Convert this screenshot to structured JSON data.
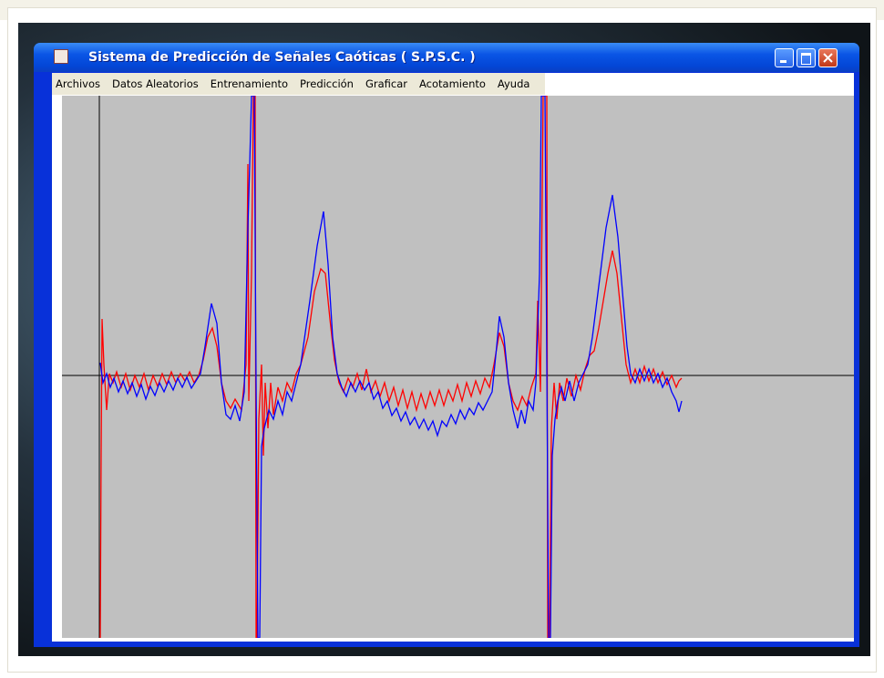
{
  "window": {
    "title": "Sistema de Predicción de Señales Caóticas ( S.P.S.C. )"
  },
  "menu": [
    "Archivos",
    "Datos Aleatorios",
    "Entrenamiento",
    "Predicción",
    "Graficar",
    "Acotamiento",
    "Ayuda"
  ],
  "chart_data": {
    "type": "line",
    "series": [
      {
        "color": "#0000ff",
        "x": [
          1,
          4,
          8,
          12,
          16,
          21,
          26,
          31,
          36,
          41,
          46,
          51,
          56,
          61,
          66,
          71,
          76,
          81,
          86,
          91,
          96,
          101,
          106,
          111,
          116,
          123,
          129,
          134,
          139,
          144,
          149,
          154,
          159,
          163,
          165,
          167,
          170,
          172,
          174,
          176,
          178,
          181,
          186,
          191,
          196,
          201,
          206,
          211,
          216,
          221,
          231,
          239,
          246,
          251,
          256,
          261,
          266,
          271,
          276,
          281,
          286,
          291,
          296,
          301,
          306,
          311,
          316,
          321,
          326,
          331,
          336,
          341,
          346,
          351,
          356,
          361,
          366,
          371,
          376,
          381,
          386,
          391,
          396,
          401,
          406,
          411,
          416,
          421,
          426,
          431,
          436,
          439,
          444,
          449,
          454,
          459,
          463,
          467,
          471,
          476,
          479,
          483,
          485,
          489,
          491,
          493,
          495,
          497,
          500,
          503,
          507,
          511,
          516,
          521,
          526,
          531,
          536,
          541,
          546,
          551,
          556,
          563,
          569,
          574,
          579,
          583,
          588,
          593,
          598,
          603,
          608,
          613,
          618,
          623,
          628,
          633,
          636,
          639
        ],
        "values": [
          14,
          -8,
          2,
          -13,
          -3,
          -18,
          -6,
          -20,
          -8,
          -23,
          -10,
          -26,
          -12,
          -22,
          -8,
          -18,
          -6,
          -16,
          -3,
          -13,
          -2,
          -14,
          -6,
          2,
          32,
          79,
          57,
          -8,
          -43,
          -48,
          -33,
          -50,
          -18,
          162,
          232,
          307,
          307,
          -8,
          -288,
          -288,
          -78,
          -58,
          -38,
          -48,
          -28,
          -43,
          -18,
          -28,
          -8,
          12,
          82,
          142,
          180,
          122,
          42,
          2,
          -13,
          -23,
          -8,
          -18,
          -6,
          -16,
          -8,
          -26,
          -18,
          -36,
          -28,
          -44,
          -36,
          -50,
          -40,
          -54,
          -46,
          -58,
          -48,
          -60,
          -50,
          -66,
          -50,
          -56,
          -43,
          -53,
          -38,
          -48,
          -36,
          -43,
          -30,
          -38,
          -28,
          -18,
          32,
          65,
          42,
          -8,
          -38,
          -58,
          -38,
          -53,
          -28,
          -38,
          -8,
          112,
          307,
          307,
          12,
          -288,
          -288,
          -88,
          -48,
          -28,
          -13,
          -28,
          -6,
          -28,
          -8,
          2,
          12,
          42,
          82,
          122,
          162,
          198,
          152,
          92,
          32,
          2,
          -8,
          7,
          -6,
          7,
          -8,
          2,
          -13,
          -3,
          -18,
          -28,
          -40,
          -28
        ]
      },
      {
        "color": "#ff0000",
        "x": [
          1,
          2,
          3,
          5,
          8,
          11,
          15,
          19,
          24,
          29,
          34,
          39,
          44,
          49,
          54,
          59,
          64,
          69,
          74,
          79,
          84,
          89,
          94,
          99,
          104,
          109,
          114,
          119,
          124,
          129,
          134,
          139,
          144,
          149,
          156,
          161,
          163,
          164,
          167,
          169,
          171,
          172,
          173,
          175,
          178,
          180,
          182,
          185,
          188,
          191,
          196,
          201,
          206,
          211,
          216,
          221,
          229,
          236,
          243,
          248,
          253,
          258,
          263,
          268,
          273,
          278,
          283,
          288,
          293,
          298,
          303,
          308,
          313,
          318,
          323,
          328,
          333,
          338,
          343,
          348,
          353,
          358,
          363,
          368,
          373,
          378,
          383,
          388,
          393,
          398,
          403,
          408,
          413,
          418,
          423,
          428,
          433,
          439,
          444,
          449,
          454,
          459,
          464,
          469,
          474,
          479,
          481,
          484,
          487,
          491,
          492,
          494,
          496,
          499,
          502,
          505,
          509,
          513,
          518,
          523,
          528,
          533,
          538,
          543,
          548,
          553,
          558,
          563,
          568,
          573,
          578,
          583,
          588,
          593,
          598,
          603,
          608,
          613,
          618,
          623,
          628,
          633,
          636,
          639
        ],
        "values": [
          -288,
          -88,
          62,
          12,
          -38,
          2,
          -8,
          4,
          -13,
          2,
          -16,
          0,
          -13,
          2,
          -16,
          0,
          -12,
          2,
          -10,
          4,
          -8,
          2,
          -6,
          4,
          -8,
          0,
          17,
          42,
          52,
          32,
          -8,
          -28,
          -36,
          -26,
          -38,
          12,
          232,
          -28,
          112,
          307,
          307,
          -288,
          -288,
          -48,
          12,
          -88,
          -8,
          -58,
          -8,
          -43,
          -13,
          -28,
          -8,
          -18,
          2,
          12,
          42,
          92,
          117,
          112,
          62,
          17,
          -8,
          -18,
          -3,
          -13,
          2,
          -16,
          7,
          -18,
          -6,
          -23,
          -8,
          -28,
          -13,
          -33,
          -16,
          -36,
          -18,
          -38,
          -20,
          -36,
          -18,
          -33,
          -16,
          -33,
          -16,
          -28,
          -10,
          -28,
          -8,
          -23,
          -6,
          -20,
          -3,
          -13,
          12,
          47,
          32,
          -8,
          -28,
          -38,
          -23,
          -33,
          -13,
          2,
          82,
          -18,
          307,
          307,
          -288,
          -288,
          -58,
          -8,
          -48,
          -8,
          -28,
          -3,
          -23,
          0,
          -16,
          7,
          22,
          27,
          52,
          82,
          112,
          137,
          112,
          62,
          12,
          -8,
          7,
          -8,
          10,
          -6,
          7,
          -8,
          4,
          -10,
          0,
          -13,
          -6,
          -3
        ]
      }
    ]
  }
}
